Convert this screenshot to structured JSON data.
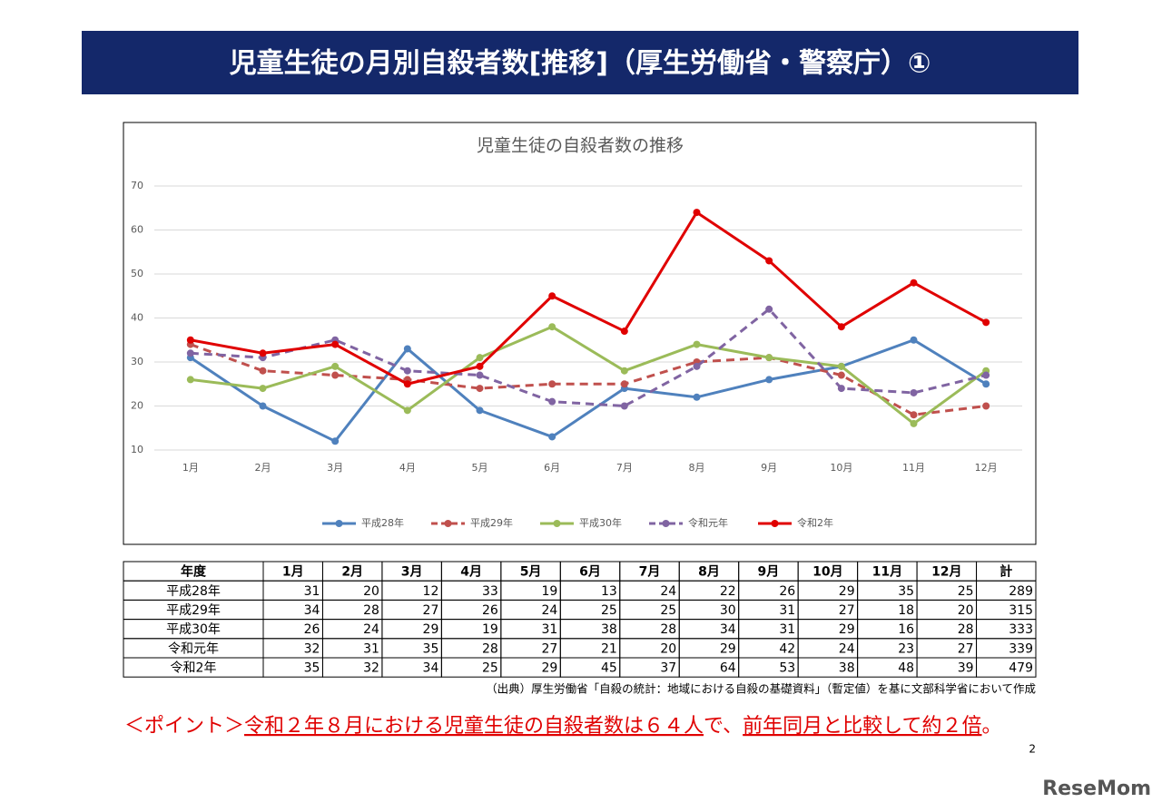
{
  "header": {
    "title": "児童生徒の月別自殺者数[推移]（厚生労働省・警察庁）①"
  },
  "chart_data": {
    "type": "line",
    "title": "児童生徒の自殺者数の推移",
    "categories": [
      "1月",
      "2月",
      "3月",
      "4月",
      "5月",
      "6月",
      "7月",
      "8月",
      "9月",
      "10月",
      "11月",
      "12月"
    ],
    "series": [
      {
        "name": "平成28年",
        "color": "#4f81bd",
        "dashed": false,
        "values": [
          31,
          20,
          12,
          33,
          19,
          13,
          24,
          22,
          26,
          29,
          35,
          25
        ]
      },
      {
        "name": "平成29年",
        "color": "#c0504d",
        "dashed": true,
        "values": [
          34,
          28,
          27,
          26,
          24,
          25,
          25,
          30,
          31,
          27,
          18,
          20
        ]
      },
      {
        "name": "平成30年",
        "color": "#9bbb59",
        "dashed": false,
        "values": [
          26,
          24,
          29,
          19,
          31,
          38,
          28,
          34,
          31,
          29,
          16,
          28
        ]
      },
      {
        "name": "令和元年",
        "color": "#8064a2",
        "dashed": true,
        "values": [
          32,
          31,
          35,
          28,
          27,
          21,
          20,
          29,
          42,
          24,
          23,
          27
        ]
      },
      {
        "name": "令和2年",
        "color": "#e00000",
        "dashed": false,
        "values": [
          35,
          32,
          34,
          25,
          29,
          45,
          37,
          64,
          53,
          38,
          48,
          39
        ]
      }
    ],
    "ylim": [
      10,
      70
    ],
    "yticks": [
      10,
      20,
      30,
      40,
      50,
      60,
      70
    ],
    "grid": true,
    "legend": "bottom"
  },
  "table": {
    "header": [
      "年度",
      "1月",
      "2月",
      "3月",
      "4月",
      "5月",
      "6月",
      "7月",
      "8月",
      "9月",
      "10月",
      "11月",
      "12月",
      "計"
    ],
    "rows": [
      [
        "平成28年",
        31,
        20,
        12,
        33,
        19,
        13,
        24,
        22,
        26,
        29,
        35,
        25,
        289
      ],
      [
        "平成29年",
        34,
        28,
        27,
        26,
        24,
        25,
        25,
        30,
        31,
        27,
        18,
        20,
        315
      ],
      [
        "平成30年",
        26,
        24,
        29,
        19,
        31,
        38,
        28,
        34,
        31,
        29,
        16,
        28,
        333
      ],
      [
        "令和元年",
        32,
        31,
        35,
        28,
        27,
        21,
        20,
        29,
        42,
        24,
        23,
        27,
        339
      ],
      [
        "令和2年",
        35,
        32,
        34,
        25,
        29,
        45,
        37,
        64,
        53,
        38,
        48,
        39,
        479
      ]
    ]
  },
  "source": "（出典）厚生労働省「自殺の統計：地域における自殺の基礎資料」（暫定値）を基に文部科学省において作成",
  "point": {
    "parts": [
      {
        "text": "＜ポイント＞",
        "underline": false
      },
      {
        "text": "令和２年８月における児童生徒の自殺者数は６４人",
        "underline": true
      },
      {
        "text": "で、",
        "underline": false
      },
      {
        "text": "前年同月と比較して約２倍",
        "underline": true
      },
      {
        "text": "。",
        "underline": false
      }
    ]
  },
  "page_number": "2",
  "watermark": "ReseMom"
}
